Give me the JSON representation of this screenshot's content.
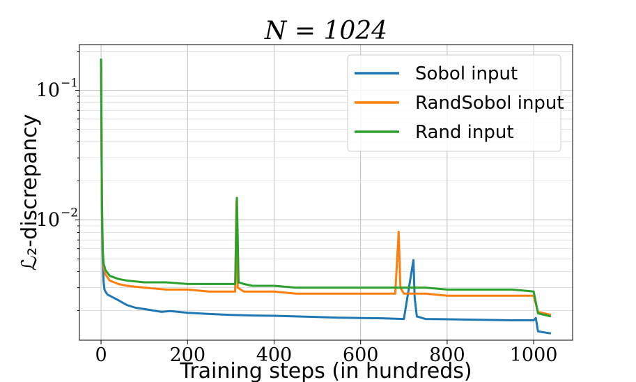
{
  "chart_data": {
    "type": "line",
    "title": "N = 1024",
    "xlabel": "Training steps (in hundreds)",
    "ylabel": "ℒ₂-discrepancy",
    "xlim": [
      -50,
      1090
    ],
    "ylim": [
      0.00118,
      0.225
    ],
    "yscale": "log",
    "grid": "major and minor",
    "legend_position": "top-right",
    "xticks": [
      0,
      200,
      400,
      600,
      800,
      1000
    ],
    "xtick_labels": [
      "0",
      "200",
      "400",
      "600",
      "800",
      "1000"
    ],
    "yticks": [
      0.1,
      0.01
    ],
    "ytick_labels": [
      "10^-1",
      "10^-2"
    ],
    "series": [
      {
        "name": "Sobol input",
        "color": "#1f77b4",
        "x": [
          0,
          2,
          4,
          6,
          8,
          10,
          15,
          20,
          30,
          40,
          60,
          80,
          100,
          120,
          140,
          160,
          200,
          250,
          300,
          350,
          400,
          450,
          500,
          550,
          600,
          650,
          700,
          722,
          725,
          730,
          750,
          800,
          850,
          900,
          950,
          1000,
          1005,
          1010,
          1040
        ],
        "values": [
          0.175,
          0.012,
          0.0048,
          0.0033,
          0.0029,
          0.0028,
          0.00265,
          0.0026,
          0.0025,
          0.0024,
          0.0022,
          0.0021,
          0.00205,
          0.002,
          0.00195,
          0.00198,
          0.00192,
          0.00188,
          0.00185,
          0.00183,
          0.00182,
          0.0018,
          0.00178,
          0.00176,
          0.00175,
          0.00174,
          0.00172,
          0.0049,
          0.0025,
          0.0018,
          0.00172,
          0.00171,
          0.0017,
          0.00169,
          0.00168,
          0.00168,
          0.00175,
          0.00138,
          0.00133
        ]
      },
      {
        "name": "RandSobol input",
        "color": "#ff7f0e",
        "x": [
          0,
          2,
          4,
          6,
          10,
          20,
          40,
          60,
          100,
          150,
          200,
          250,
          300,
          310,
          313,
          316,
          330,
          350,
          400,
          450,
          500,
          550,
          600,
          650,
          680,
          688,
          692,
          700,
          750,
          800,
          850,
          900,
          950,
          1000,
          1010,
          1040
        ],
        "values": [
          0.16,
          0.013,
          0.0055,
          0.0043,
          0.0038,
          0.0034,
          0.0032,
          0.0031,
          0.003,
          0.0029,
          0.0029,
          0.0028,
          0.0028,
          0.0028,
          0.014,
          0.003,
          0.0028,
          0.0028,
          0.0028,
          0.0027,
          0.0027,
          0.0027,
          0.0027,
          0.0027,
          0.0027,
          0.0081,
          0.003,
          0.0027,
          0.0027,
          0.0026,
          0.0026,
          0.0026,
          0.0026,
          0.0026,
          0.00195,
          0.00185
        ]
      },
      {
        "name": "Rand input",
        "color": "#2ca02c",
        "x": [
          0,
          2,
          4,
          6,
          10,
          20,
          40,
          60,
          100,
          150,
          200,
          250,
          300,
          310,
          314,
          318,
          330,
          350,
          400,
          450,
          500,
          550,
          600,
          650,
          700,
          750,
          800,
          850,
          900,
          950,
          1000,
          1010,
          1040
        ],
        "values": [
          0.175,
          0.014,
          0.0058,
          0.0046,
          0.0041,
          0.0037,
          0.0035,
          0.0034,
          0.0033,
          0.0033,
          0.0032,
          0.0032,
          0.0032,
          0.0032,
          0.0148,
          0.0033,
          0.0032,
          0.0031,
          0.0031,
          0.003,
          0.003,
          0.003,
          0.003,
          0.003,
          0.003,
          0.003,
          0.0029,
          0.0029,
          0.0029,
          0.0029,
          0.0028,
          0.0019,
          0.0018
        ]
      }
    ]
  }
}
